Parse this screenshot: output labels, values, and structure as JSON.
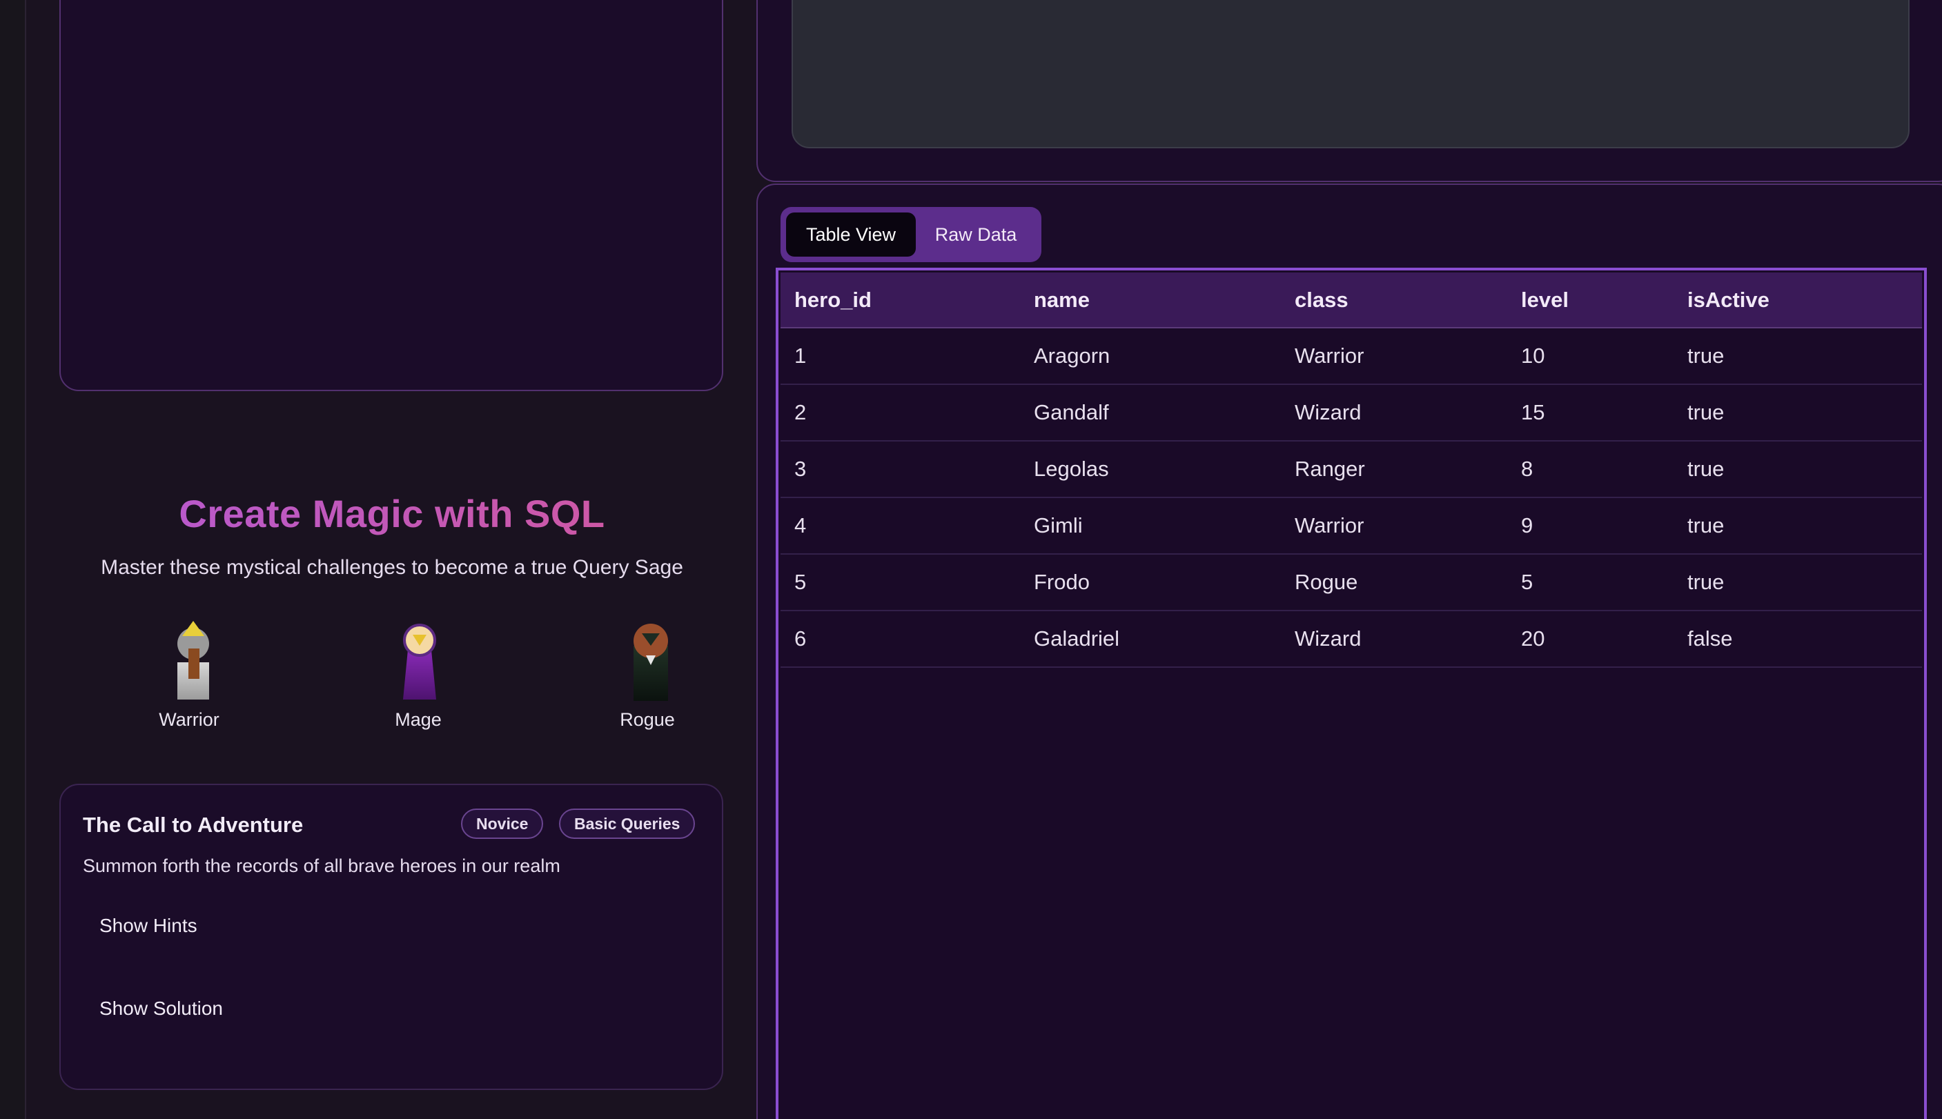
{
  "intro": {
    "title": "Create Magic with SQL",
    "subtitle": "Master these mystical challenges to become a true Query Sage"
  },
  "characters": [
    {
      "label": "Warrior",
      "icon": "warrior-icon"
    },
    {
      "label": "Mage",
      "icon": "mage-icon"
    },
    {
      "label": "Rogue",
      "icon": "rogue-icon"
    }
  ],
  "challenge": {
    "title": "The Call to Adventure",
    "badges": [
      "Novice",
      "Basic Queries"
    ],
    "description": "Summon forth the records of all brave heroes in our realm",
    "show_hints_label": "Show Hints",
    "show_solution_label": "Show Solution"
  },
  "results": {
    "tabs": [
      {
        "label": "Table View",
        "active": true
      },
      {
        "label": "Raw Data",
        "active": false
      }
    ],
    "columns": [
      "hero_id",
      "name",
      "class",
      "level",
      "isActive"
    ],
    "rows": [
      [
        "1",
        "Aragorn",
        "Warrior",
        "10",
        "true"
      ],
      [
        "2",
        "Gandalf",
        "Wizard",
        "15",
        "true"
      ],
      [
        "3",
        "Legolas",
        "Ranger",
        "8",
        "true"
      ],
      [
        "4",
        "Gimli",
        "Warrior",
        "9",
        "true"
      ],
      [
        "5",
        "Frodo",
        "Rogue",
        "5",
        "true"
      ],
      [
        "6",
        "Galadriel",
        "Wizard",
        "20",
        "false"
      ]
    ]
  },
  "colors": {
    "background": "#1a1220",
    "panel": "#1b0c29",
    "accent": "#8a4ed0",
    "title_gradient_start": "#b45ad8",
    "title_gradient_end": "#d6589a"
  }
}
